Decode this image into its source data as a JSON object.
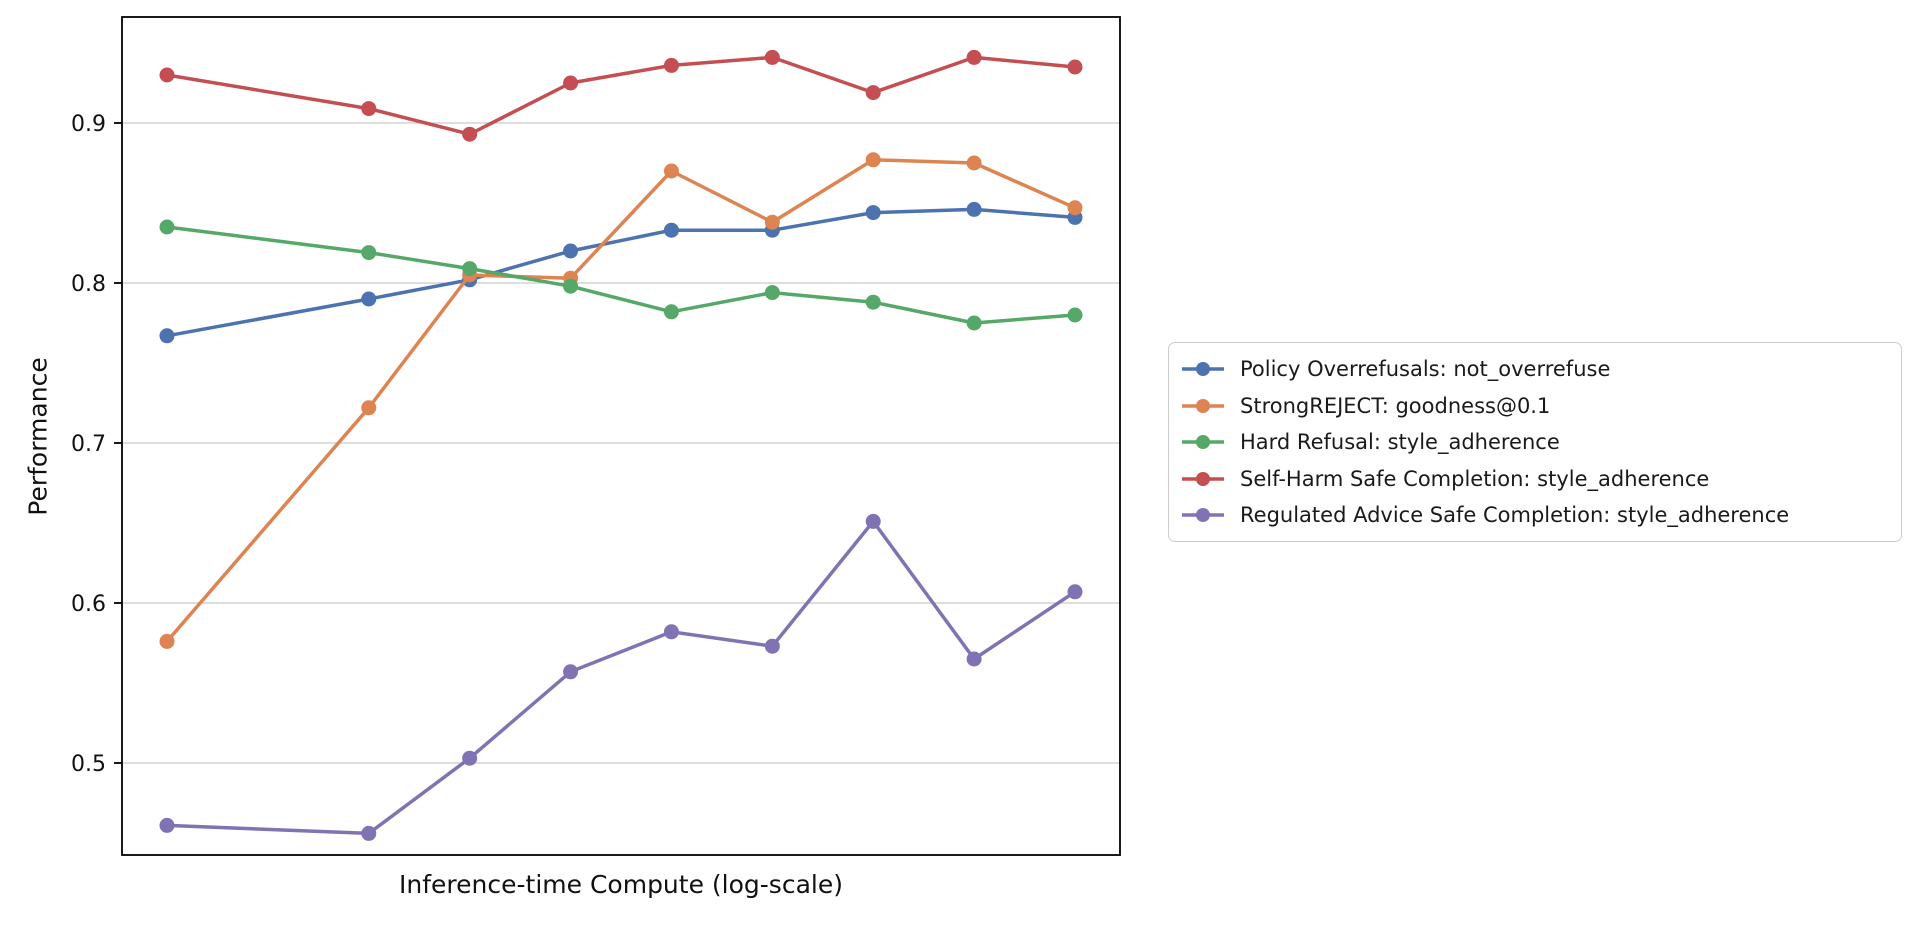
{
  "chart_data": {
    "type": "line",
    "title": "",
    "xlabel": "Inference-time Compute (log-scale)",
    "ylabel": "Performance",
    "x_axis": {
      "scale": "log",
      "tick_labels_visible": false,
      "x_log2_steps": [
        0,
        2,
        3,
        4,
        5,
        6,
        7,
        8,
        9
      ]
    },
    "y_axis": {
      "ticks": [
        0.5,
        0.6,
        0.7,
        0.8,
        0.9
      ],
      "ylim": [
        0.444,
        0.966
      ],
      "grid": true
    },
    "legend": {
      "position": "outside-right-center"
    },
    "series": [
      {
        "name": "Policy Overrefusals: not_overrefuse",
        "color": "#4C72B0",
        "values": [
          0.767,
          0.79,
          0.802,
          0.82,
          0.833,
          0.833,
          0.844,
          0.846,
          0.841
        ]
      },
      {
        "name": "StrongREJECT: goodness@0.1",
        "color": "#DD8452",
        "values": [
          0.576,
          0.722,
          0.805,
          0.803,
          0.87,
          0.838,
          0.877,
          0.875,
          0.847
        ]
      },
      {
        "name": "Hard Refusal: style_adherence",
        "color": "#55A868",
        "values": [
          0.835,
          0.819,
          0.809,
          0.798,
          0.782,
          0.794,
          0.788,
          0.775,
          0.78
        ]
      },
      {
        "name": "Self-Harm Safe Completion: style_adherence",
        "color": "#C44E52",
        "values": [
          0.93,
          0.909,
          0.893,
          0.925,
          0.936,
          0.941,
          0.919,
          0.941,
          0.935
        ]
      },
      {
        "name": "Regulated Advice Safe Completion: style_adherence",
        "color": "#8172B3",
        "values": [
          0.461,
          0.456,
          0.503,
          0.557,
          0.582,
          0.573,
          0.651,
          0.565,
          0.607
        ]
      }
    ]
  }
}
